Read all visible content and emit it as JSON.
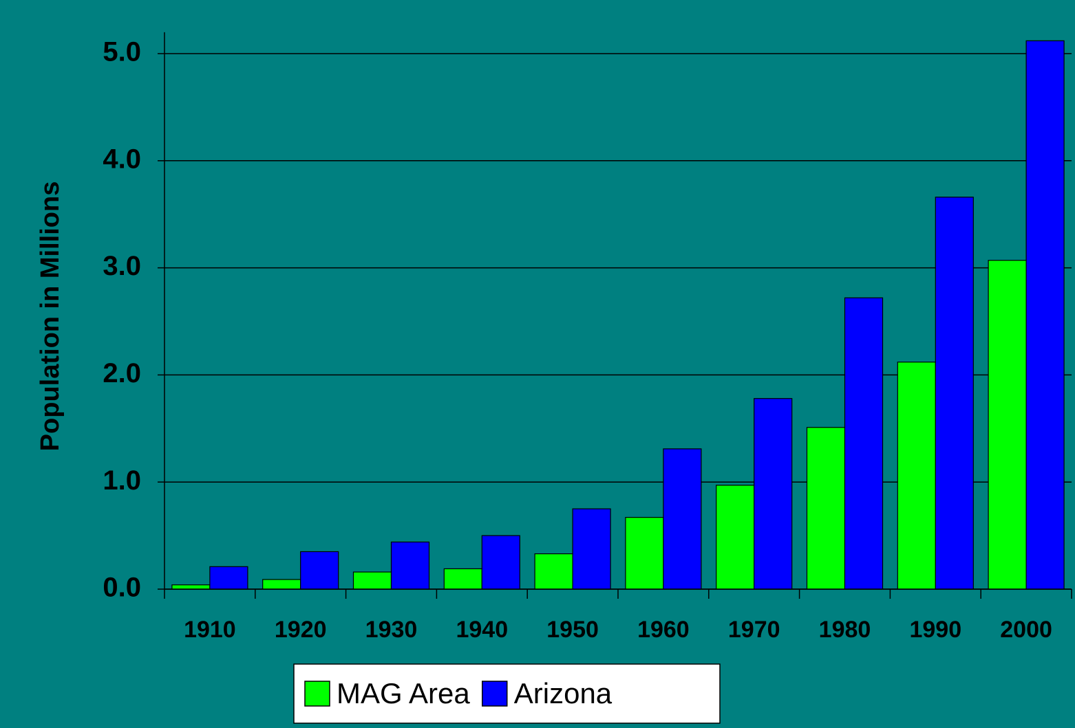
{
  "chart_data": {
    "type": "bar",
    "y_label": "Population in Millions",
    "categories": [
      "1910",
      "1920",
      "1930",
      "1940",
      "1950",
      "1960",
      "1970",
      "1980",
      "1990",
      "2000"
    ],
    "series": [
      {
        "name": "MAG Area",
        "color": "#00ff00",
        "values": [
          0.04,
          0.09,
          0.16,
          0.19,
          0.33,
          0.67,
          0.97,
          1.51,
          2.12,
          3.07
        ]
      },
      {
        "name": "Arizona",
        "color": "#0000ff",
        "values": [
          0.21,
          0.35,
          0.44,
          0.5,
          0.75,
          1.31,
          1.78,
          2.72,
          3.66,
          5.12
        ]
      }
    ],
    "ylim": [
      0,
      5.2
    ],
    "yticks": [
      {
        "value": 0,
        "label": "0.0"
      },
      {
        "value": 1,
        "label": "1.0"
      },
      {
        "value": 2,
        "label": "2.0"
      },
      {
        "value": 3,
        "label": "3.0"
      },
      {
        "value": 4,
        "label": "4.0"
      },
      {
        "value": 5,
        "label": "5.0"
      }
    ],
    "grid": true
  }
}
